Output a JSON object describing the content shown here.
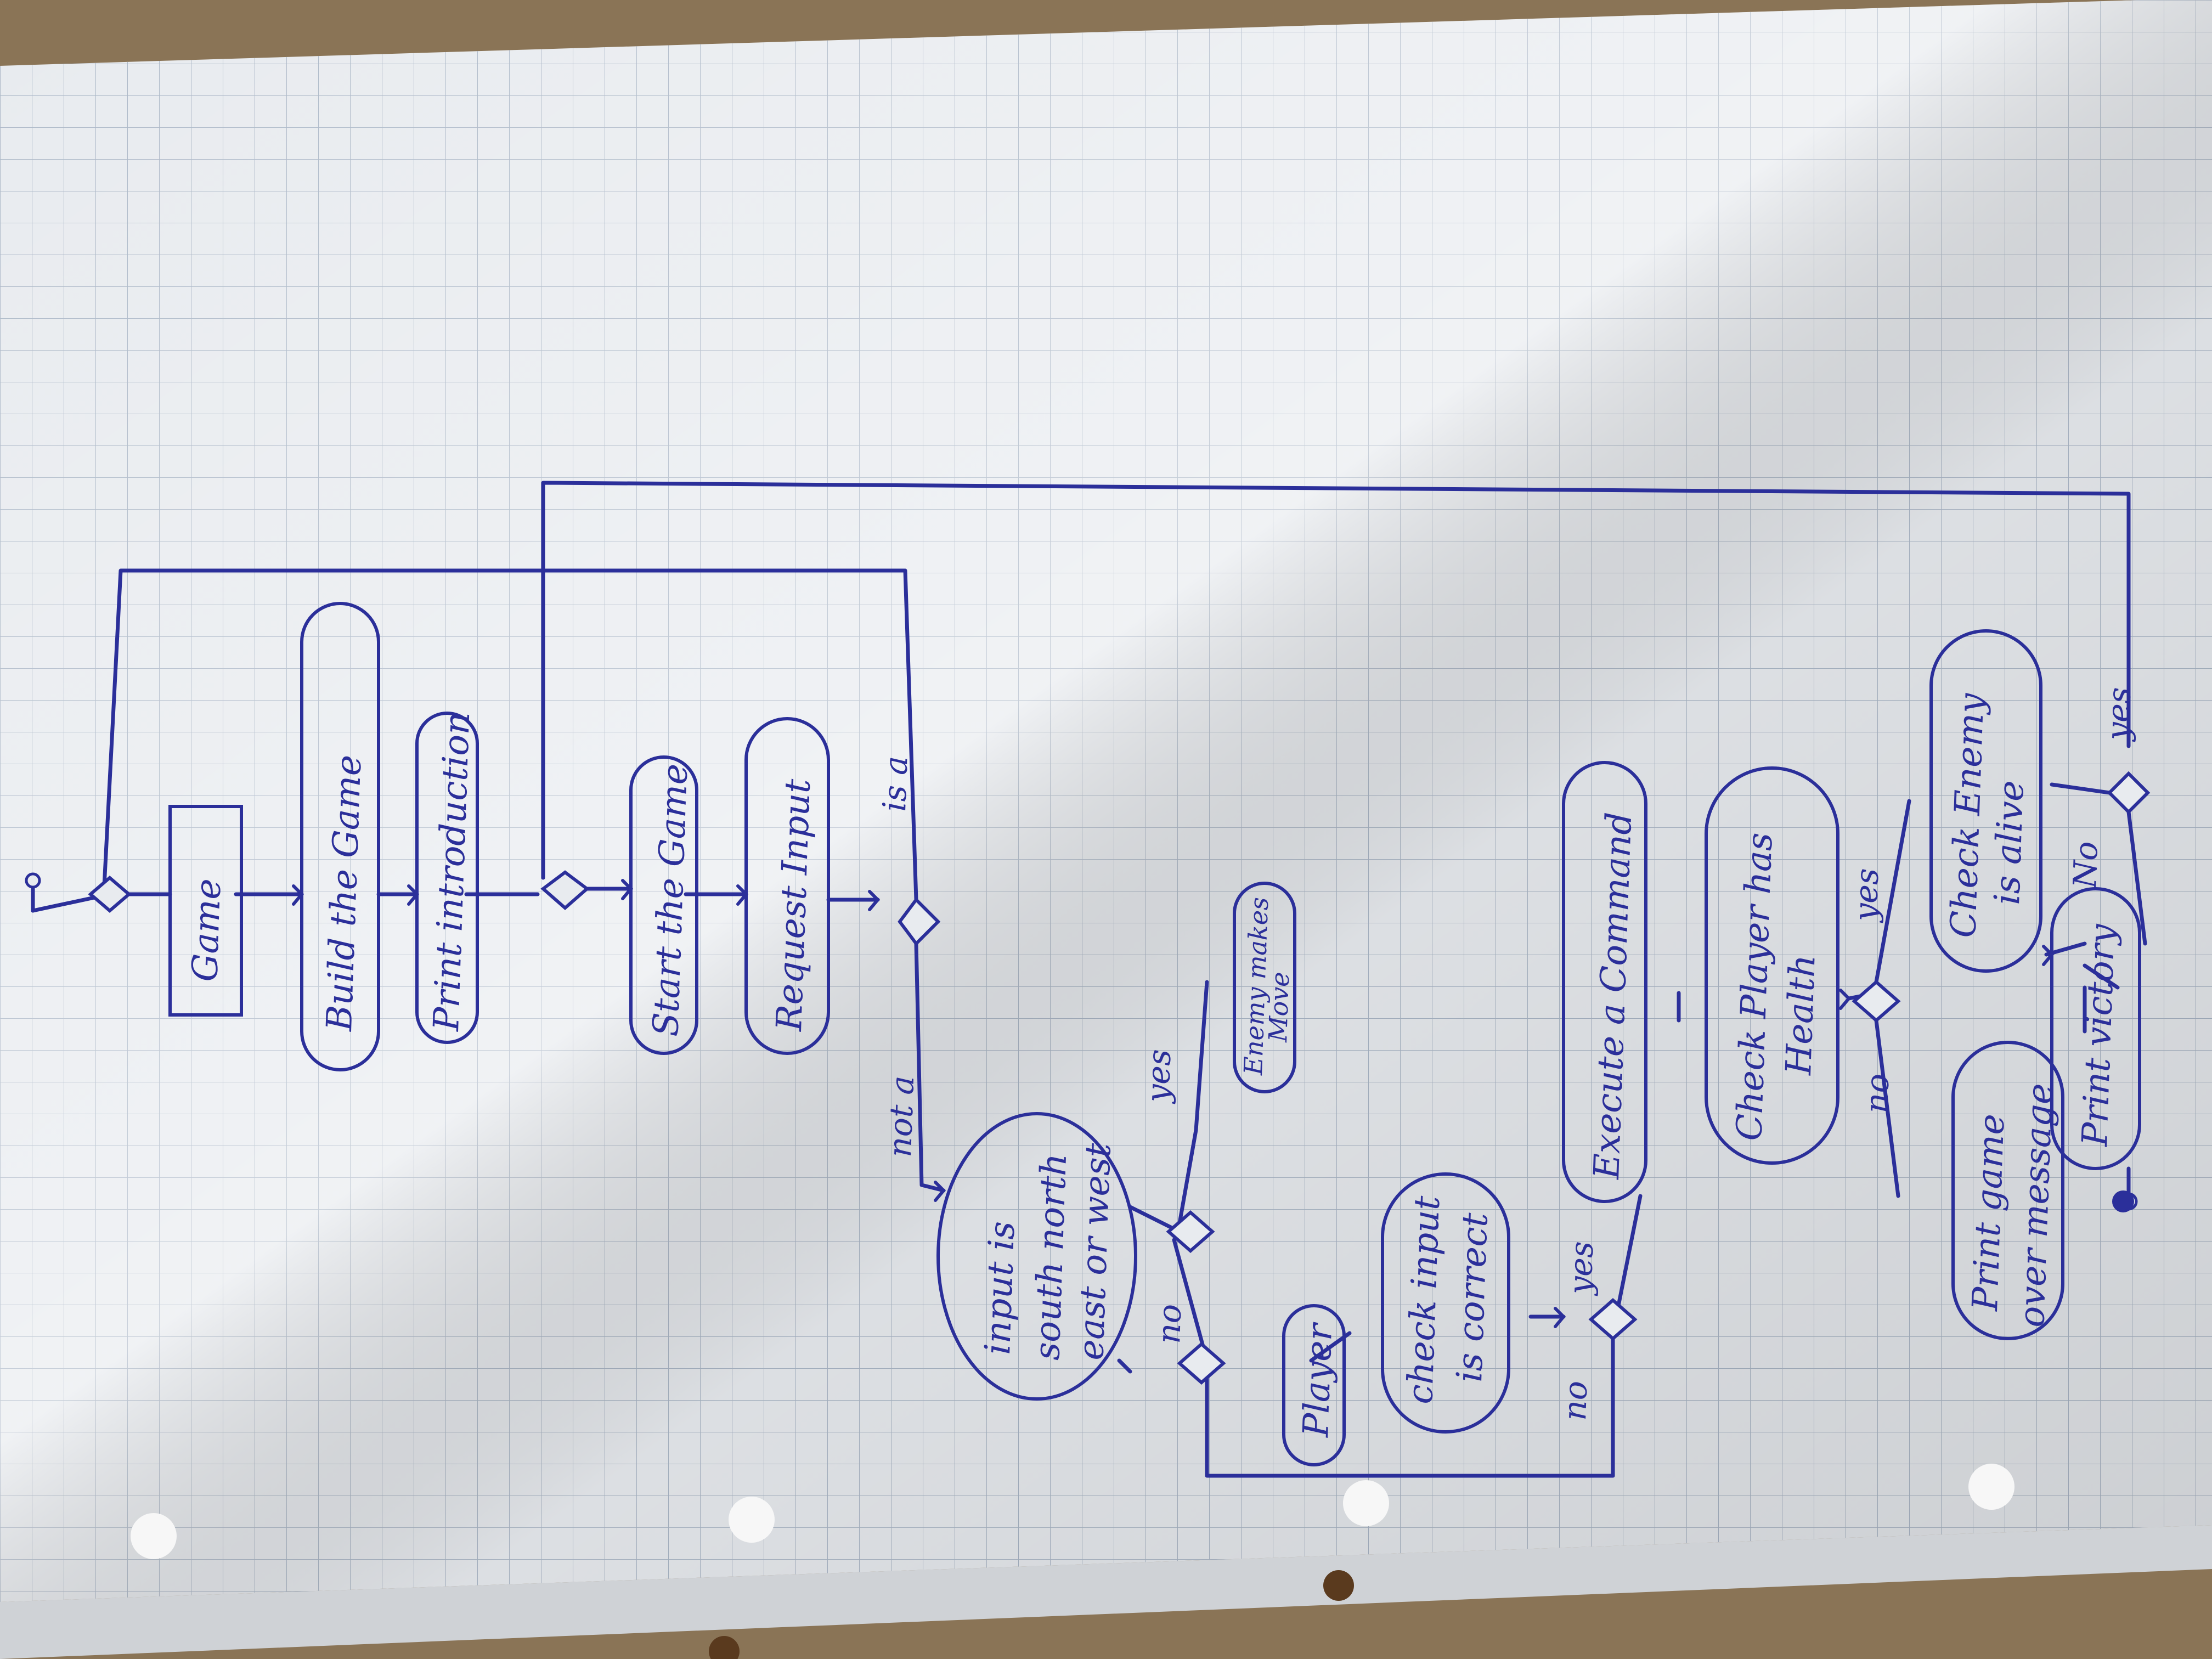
{
  "diagram": {
    "rotation_note_visible": "",
    "nodes": {
      "game": "Game",
      "build": "Build the Game",
      "intro": "Print introduction",
      "start": "Start the Game",
      "request": "Request Input",
      "direction": [
        "input is",
        "south north",
        "east or west"
      ],
      "enemy_move": [
        "Enemy makes",
        "Move"
      ],
      "player": "Player",
      "check_input": [
        "check input",
        "is correct"
      ],
      "execute": "Execute a Command",
      "health": [
        "Check Player has",
        "Health"
      ],
      "enemy_alive": [
        "Check Enemy",
        "is alive"
      ],
      "victory": "Print victory",
      "gameover": [
        "Print game",
        "over message"
      ]
    },
    "edges": {
      "is_a": "is a",
      "not_a": "not a",
      "yes1": "yes",
      "no1": "no",
      "yes2": "yes",
      "no2": "no",
      "yes3": "yes",
      "no3": "no",
      "yes4": "yes",
      "no4": "No"
    }
  }
}
